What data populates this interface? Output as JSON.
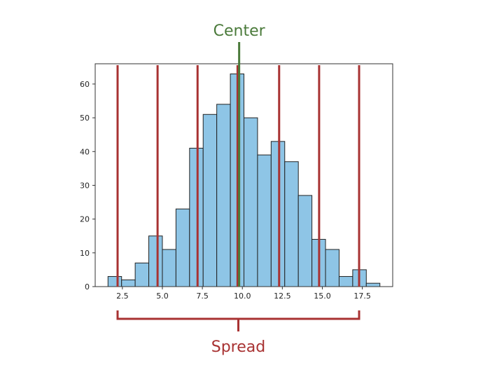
{
  "chart_data": {
    "type": "bar",
    "bins": [
      {
        "x0": 1.6,
        "x1": 2.45,
        "count": 3
      },
      {
        "x0": 2.45,
        "x1": 3.3,
        "count": 2
      },
      {
        "x0": 3.3,
        "x1": 4.15,
        "count": 7
      },
      {
        "x0": 4.15,
        "x1": 5.0,
        "count": 15
      },
      {
        "x0": 5.0,
        "x1": 5.85,
        "count": 11
      },
      {
        "x0": 5.85,
        "x1": 6.7,
        "count": 23
      },
      {
        "x0": 6.7,
        "x1": 7.55,
        "count": 41
      },
      {
        "x0": 7.55,
        "x1": 8.4,
        "count": 51
      },
      {
        "x0": 8.4,
        "x1": 9.25,
        "count": 54
      },
      {
        "x0": 9.25,
        "x1": 10.1,
        "count": 63
      },
      {
        "x0": 10.1,
        "x1": 10.95,
        "count": 50
      },
      {
        "x0": 10.95,
        "x1": 11.8,
        "count": 39
      },
      {
        "x0": 11.8,
        "x1": 12.65,
        "count": 43
      },
      {
        "x0": 12.65,
        "x1": 13.5,
        "count": 37
      },
      {
        "x0": 13.5,
        "x1": 14.35,
        "count": 27
      },
      {
        "x0": 14.35,
        "x1": 15.2,
        "count": 14
      },
      {
        "x0": 15.2,
        "x1": 16.05,
        "count": 11
      },
      {
        "x0": 16.05,
        "x1": 16.9,
        "count": 3
      },
      {
        "x0": 16.9,
        "x1": 17.75,
        "count": 5
      },
      {
        "x0": 17.75,
        "x1": 18.6,
        "count": 1
      }
    ],
    "xlim": [
      0.8,
      19.4
    ],
    "ylim": [
      0,
      66
    ],
    "xticks": [
      {
        "value": 2.5,
        "label": "2.5"
      },
      {
        "value": 5.0,
        "label": "5.0"
      },
      {
        "value": 7.5,
        "label": "7.5"
      },
      {
        "value": 10.0,
        "label": "10.0"
      },
      {
        "value": 12.5,
        "label": "12.5"
      },
      {
        "value": 15.0,
        "label": "15.0"
      },
      {
        "value": 17.5,
        "label": "17.5"
      }
    ],
    "yticks": [
      {
        "value": 0,
        "label": "0"
      },
      {
        "value": 10,
        "label": "10"
      },
      {
        "value": 20,
        "label": "20"
      },
      {
        "value": 30,
        "label": "30"
      },
      {
        "value": 40,
        "label": "40"
      },
      {
        "value": 50,
        "label": "50"
      },
      {
        "value": 60,
        "label": "60"
      }
    ],
    "grid": false,
    "center": {
      "value": 9.8,
      "label": "Center",
      "color": "#4a7a3a"
    },
    "spread": {
      "lines": [
        2.2,
        4.7,
        7.2,
        9.7,
        12.3,
        14.8,
        17.3
      ],
      "range": [
        2.2,
        17.3
      ],
      "label": "Spread",
      "color": "#a83232"
    },
    "bar_color": "#8ec5e6",
    "bar_edge_color": "#222222"
  }
}
